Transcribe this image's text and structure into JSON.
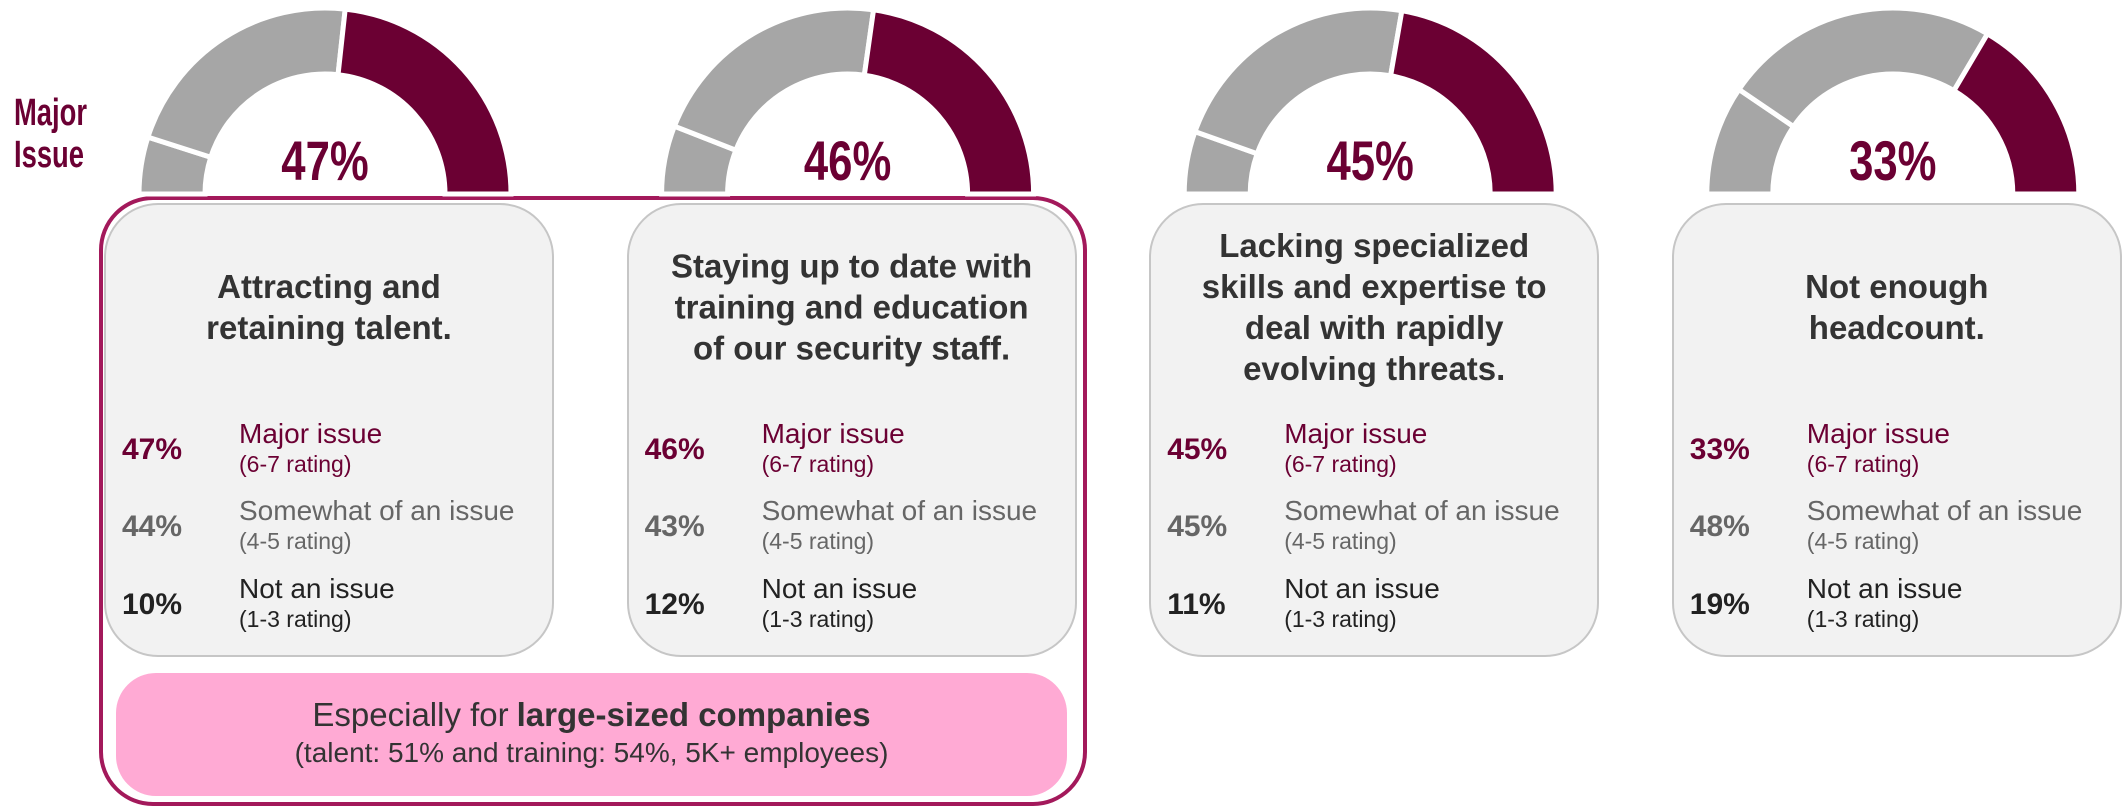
{
  "side_label": [
    "Major",
    "Issue"
  ],
  "chart_data": [
    {
      "type": "donut",
      "title": [
        "Attracting and",
        "retaining talent."
      ],
      "categories": [
        "Major issue",
        "Somewhat of an issue",
        "Not an issue"
      ],
      "ratings": [
        "(6-7 rating)",
        "(4-5 rating)",
        "(1-3 rating)"
      ],
      "values": [
        47,
        44,
        10
      ],
      "value_labels": [
        "47%",
        "44%",
        "10%"
      ],
      "colors": [
        "#6b0033",
        "#a6a6a6",
        "#a6a6a6"
      ]
    },
    {
      "type": "donut",
      "title": [
        "Staying up to date with",
        "training and education",
        "of our security staff."
      ],
      "categories": [
        "Major issue",
        "Somewhat of an issue",
        "Not an issue"
      ],
      "ratings": [
        "(6-7 rating)",
        "(4-5 rating)",
        "(1-3 rating)"
      ],
      "values": [
        46,
        43,
        12
      ],
      "value_labels": [
        "46%",
        "43%",
        "12%"
      ],
      "colors": [
        "#6b0033",
        "#a6a6a6",
        "#a6a6a6"
      ]
    },
    {
      "type": "donut",
      "title": [
        "Lacking specialized",
        "skills and expertise to",
        "deal with rapidly",
        "evolving threats."
      ],
      "categories": [
        "Major issue",
        "Somewhat of an issue",
        "Not an issue"
      ],
      "ratings": [
        "(6-7 rating)",
        "(4-5 rating)",
        "(1-3 rating)"
      ],
      "values": [
        45,
        45,
        11
      ],
      "value_labels": [
        "45%",
        "45%",
        "11%"
      ],
      "colors": [
        "#6b0033",
        "#a6a6a6",
        "#a6a6a6"
      ]
    },
    {
      "type": "donut",
      "title": [
        "Not enough",
        "headcount."
      ],
      "categories": [
        "Major issue",
        "Somewhat of an issue",
        "Not an issue"
      ],
      "ratings": [
        "(6-7 rating)",
        "(4-5 rating)",
        "(1-3 rating)"
      ],
      "values": [
        33,
        48,
        19
      ],
      "value_labels": [
        "33%",
        "48%",
        "19%"
      ],
      "colors": [
        "#6b0033",
        "#a6a6a6",
        "#a6a6a6"
      ]
    }
  ],
  "callout": {
    "lead": "Especially for",
    "emphasis": "large-sized companies",
    "detail": "(talent: 51% and training: 54%, 5K+ employees)"
  }
}
